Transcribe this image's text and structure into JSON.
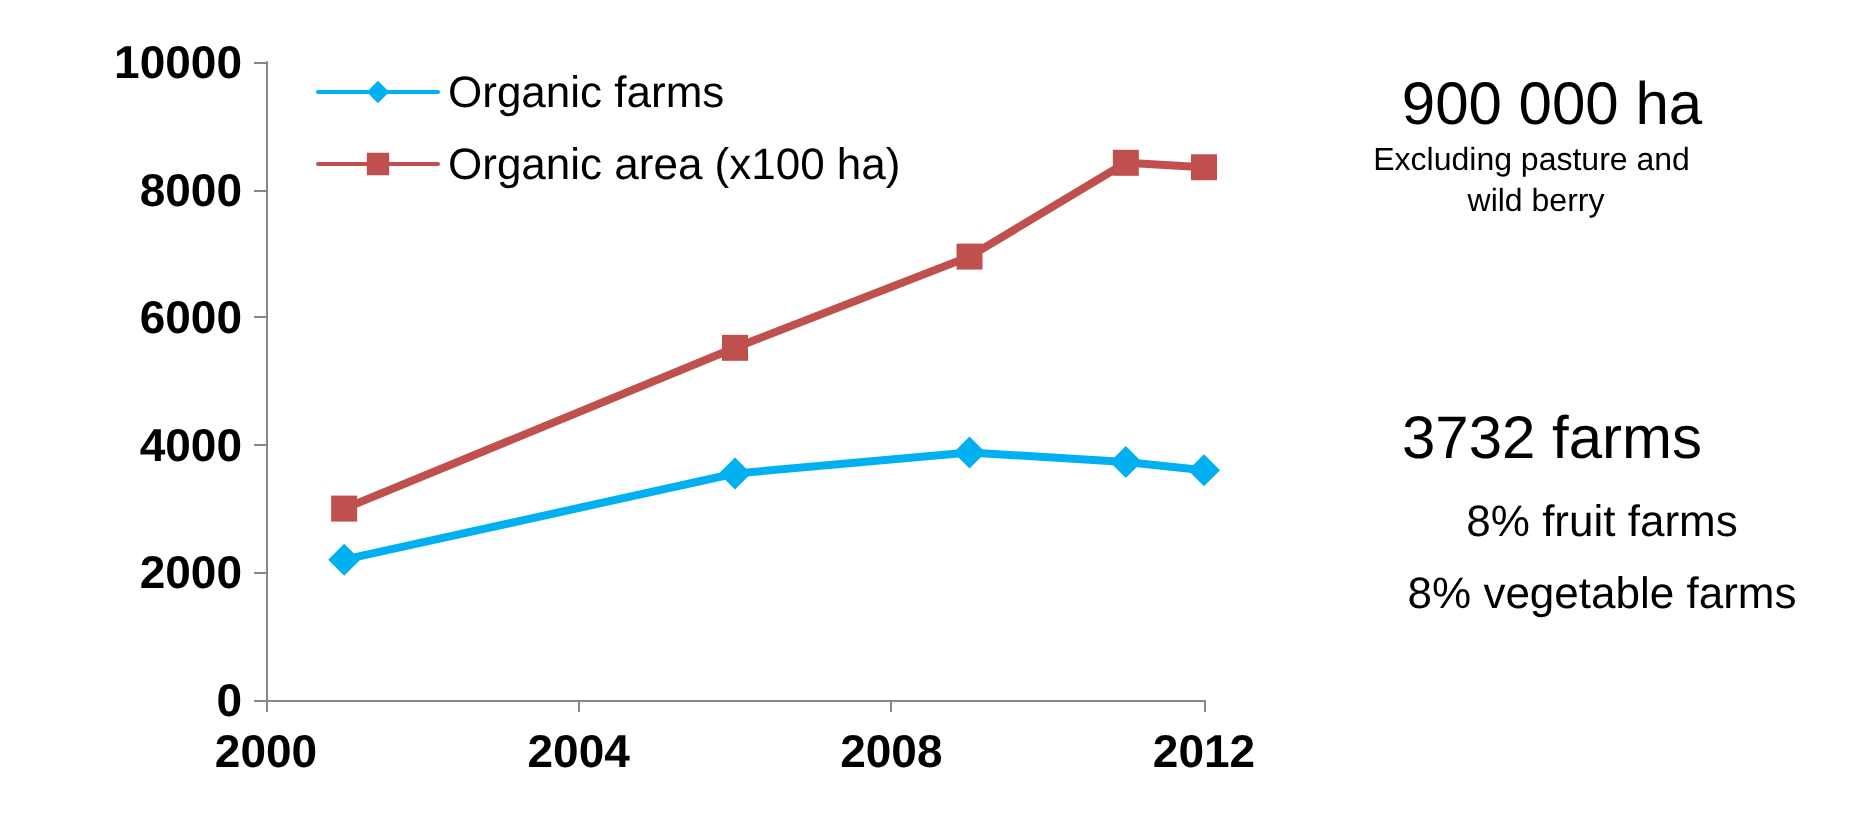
{
  "chart_data": {
    "type": "line",
    "x": [
      2001,
      2006,
      2009,
      2011,
      2012
    ],
    "series": [
      {
        "name": "Organic farms",
        "color": "#00b0f0",
        "marker": "diamond",
        "values": [
          2200,
          3550,
          3880,
          3730,
          3600
        ]
      },
      {
        "name": "Organic area (x100 ha)",
        "color": "#c0504d",
        "marker": "square",
        "values": [
          3000,
          5520,
          6950,
          8420,
          8350
        ]
      }
    ],
    "xlim": [
      2000,
      2012
    ],
    "xticks": [
      2000,
      2004,
      2008,
      2012
    ],
    "ylim": [
      0,
      10000
    ],
    "yticks": [
      0,
      2000,
      4000,
      6000,
      8000,
      10000
    ],
    "grid": false,
    "legend": "top left",
    "line_style": "solid",
    "annotations": [
      "900 000 ha",
      "Excluding pasture and wild berry",
      "3732 farms",
      "8% fruit farms",
      "8% vegetable farms"
    ]
  }
}
